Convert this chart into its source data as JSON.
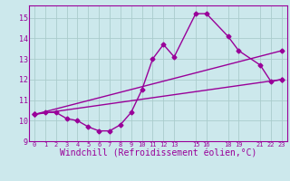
{
  "bg_color": "#cce8ec",
  "grid_color": "#aacccc",
  "line_color": "#990099",
  "marker": "D",
  "marker_size": 2.5,
  "xlabel": "Windchill (Refroidissement éolien,°C)",
  "xlabel_fontsize": 7,
  "xlim": [
    -0.5,
    23.5
  ],
  "ylim": [
    9,
    15.6
  ],
  "yticks": [
    9,
    10,
    11,
    12,
    13,
    14,
    15
  ],
  "xticks": [
    0,
    1,
    2,
    3,
    4,
    5,
    6,
    7,
    8,
    9,
    10,
    11,
    12,
    13,
    15,
    16,
    18,
    19,
    21,
    22,
    23
  ],
  "xtick_labels": [
    "0",
    "1",
    "2",
    "3",
    "4",
    "5",
    "6",
    "7",
    "8",
    "9",
    "10",
    "11",
    "12",
    "13",
    "15",
    "16",
    "18",
    "19",
    "21",
    "22",
    "23"
  ],
  "line1_x": [
    0,
    1,
    2,
    3,
    4,
    5,
    6,
    7,
    8,
    9,
    10,
    11,
    12,
    13,
    15,
    16,
    18,
    19,
    21,
    22,
    23
  ],
  "line1_y": [
    10.3,
    10.4,
    10.4,
    10.1,
    10.0,
    9.7,
    9.5,
    9.5,
    9.8,
    10.4,
    11.5,
    13.0,
    13.7,
    13.1,
    15.2,
    15.2,
    14.1,
    13.4,
    12.7,
    11.9,
    12.0
  ],
  "line2_x": [
    0,
    23
  ],
  "line2_y": [
    10.3,
    12.0
  ],
  "line3_x": [
    0,
    23
  ],
  "line3_y": [
    10.3,
    13.4
  ]
}
